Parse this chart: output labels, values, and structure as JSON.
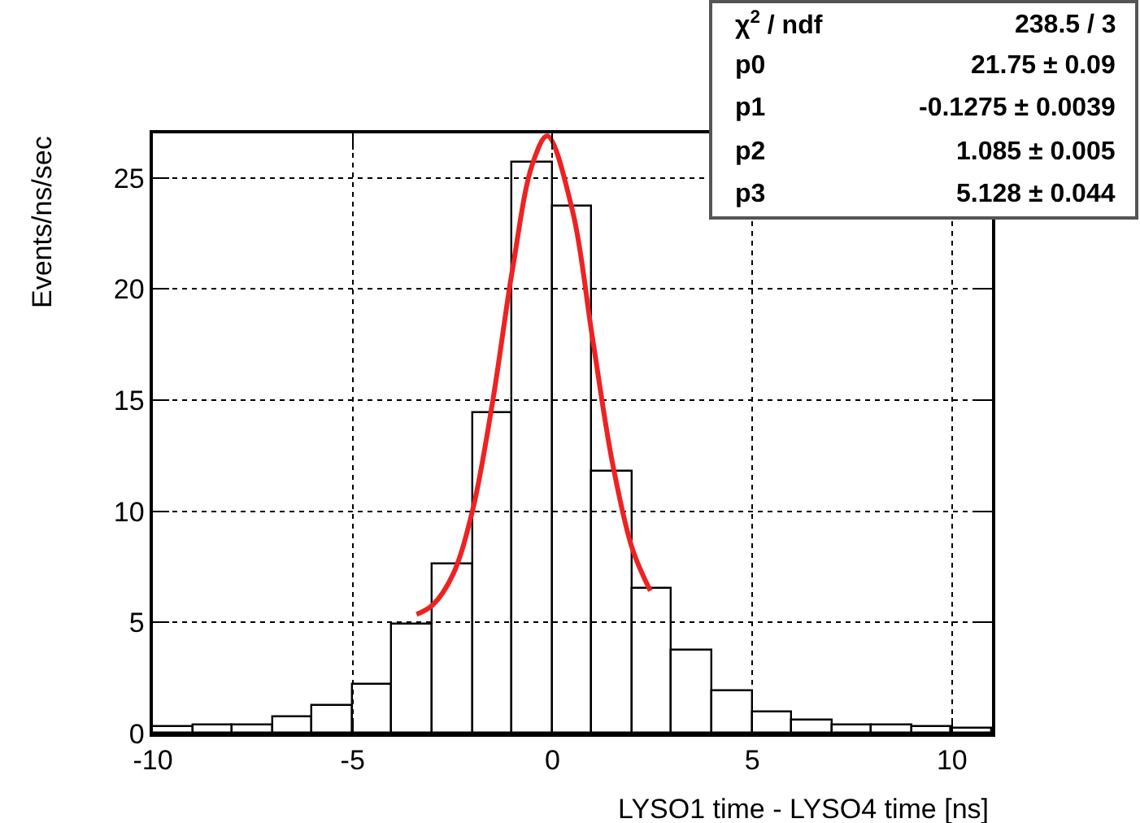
{
  "chart_data": {
    "type": "histogram",
    "bins": [
      -10,
      -9,
      -8,
      -7,
      -6,
      -5,
      -4,
      -3,
      -2,
      -1,
      0,
      1,
      2,
      3,
      4,
      5,
      6,
      7,
      8,
      9,
      10,
      11
    ],
    "values": [
      0.32,
      0.4,
      0.4,
      0.73,
      1.24,
      2.22,
      4.93,
      7.59,
      14.4,
      25.7,
      23.7,
      11.8,
      6.5,
      3.7,
      1.88,
      0.95,
      0.61,
      0.39,
      0.34,
      0.29,
      0.22
    ],
    "color": "#000000",
    "series": [
      {
        "type": "line",
        "color": "#ee2222",
        "x": [
          -3.4,
          -3,
          -2.5,
          -2,
          -1.5,
          -1,
          -0.5,
          -0.13,
          0.5,
          1,
          1.5,
          2,
          2.45
        ],
        "values": [
          5.36,
          5.78,
          7.12,
          10.03,
          14.9,
          20.88,
          25.63,
          26.88,
          23.53,
          17.81,
          12.19,
          8.31,
          6.42
        ]
      }
    ],
    "xlabel": "LYSO1 time - LYSO4 time [ns]",
    "ylabel": "Events/ns/sec",
    "xlim": [
      -10,
      11
    ],
    "xticks": [
      -10,
      -5,
      0,
      5,
      10
    ],
    "ylim": [
      0,
      27
    ],
    "yticks": [
      0,
      5,
      10,
      15,
      20,
      25
    ],
    "grid": true,
    "annotations": [
      "χ$^{2}$ / ndf",
      "238.5 / 3",
      "p0",
      "21.75 ± 0.09",
      "p1",
      "-0.1275 ± 0.0039",
      "p2",
      "1.085 ± 0.005",
      "p3",
      "5.128 ± 0.044"
    ]
  }
}
